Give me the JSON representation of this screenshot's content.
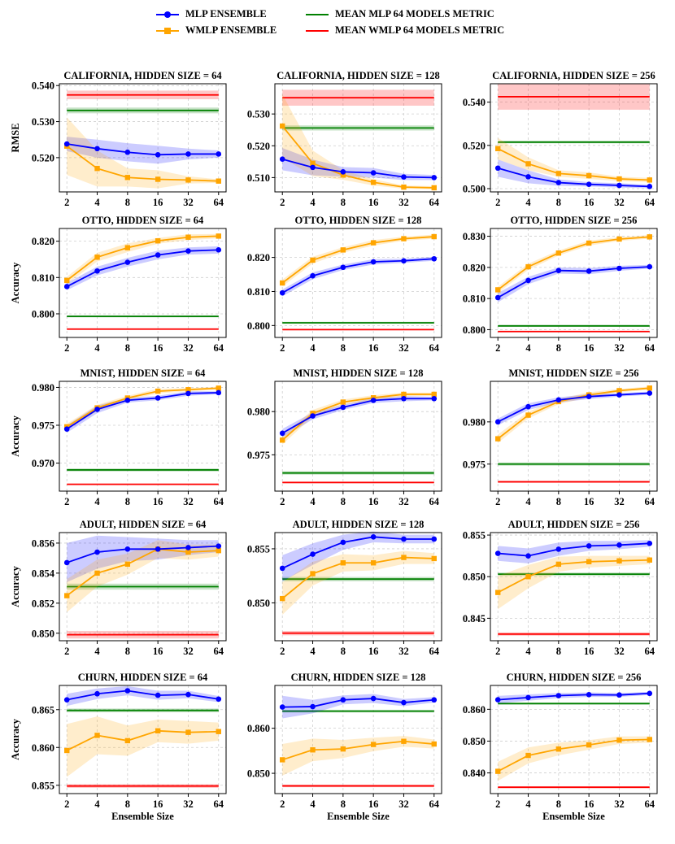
{
  "legend": {
    "items": [
      {
        "label": "MLP ENSEMBLE",
        "color": "#0000ff",
        "marker": "circle"
      },
      {
        "label": "WMLP ENSEMBLE",
        "color": "#ffa500",
        "marker": "square"
      },
      {
        "label": "MEAN MLP 64 MODELS METRIC",
        "color": "#008000",
        "marker": "none"
      },
      {
        "label": "MEAN WMLP 64 MODELS METRIC",
        "color": "#ff0000",
        "marker": "none"
      }
    ]
  },
  "chart_data": [
    {
      "type": "line",
      "title": "CALIFORNIA, HIDDEN SIZE = 64",
      "ylabel": "RMSE",
      "xlabel": "",
      "categories": [
        "2",
        "4",
        "8",
        "16",
        "32",
        "64"
      ],
      "ylim": [
        0.5105,
        0.5405
      ],
      "yticks": [
        "0.520",
        "0.530",
        "0.540"
      ],
      "ytick_values": [
        0.52,
        0.53,
        0.54
      ],
      "series": [
        {
          "name": "MLP ENSEMBLE",
          "values": [
            0.5238,
            0.5225,
            0.5215,
            0.5208,
            0.521,
            0.521
          ],
          "band": [
            0.002,
            0.0025,
            0.0025,
            0.0025,
            0.0015,
            0.001
          ]
        },
        {
          "name": "WMLP ENSEMBLE",
          "values": [
            0.5232,
            0.517,
            0.5145,
            0.514,
            0.5138,
            0.5135
          ],
          "band": [
            0.008,
            0.005,
            0.0025,
            0.0025,
            0.001,
            0.0005
          ]
        }
      ],
      "mean_mlp": 0.5331,
      "mean_mlp_band": 0.0008,
      "mean_wmlp": 0.5374,
      "mean_wmlp_band": 0.0012
    },
    {
      "type": "line",
      "title": "CALIFORNIA, HIDDEN SIZE = 128",
      "ylabel": "",
      "xlabel": "",
      "categories": [
        "2",
        "4",
        "8",
        "16",
        "32",
        "64"
      ],
      "ylim": [
        0.5055,
        0.5395
      ],
      "yticks": [
        "0.510",
        "0.520",
        "0.530"
      ],
      "ytick_values": [
        0.51,
        0.52,
        0.53
      ],
      "series": [
        {
          "name": "MLP ENSEMBLE",
          "values": [
            0.5158,
            0.5132,
            0.5118,
            0.5115,
            0.5102,
            0.51
          ],
          "band": [
            0.0035,
            0.0025,
            0.0015,
            0.0015,
            0.001,
            0.0008
          ]
        },
        {
          "name": "WMLP ENSEMBLE",
          "values": [
            0.5262,
            0.5145,
            0.5108,
            0.5085,
            0.507,
            0.5068
          ],
          "band": [
            0.01,
            0.004,
            0.0015,
            0.001,
            0.0005,
            0.0005
          ]
        }
      ],
      "mean_mlp": 0.5256,
      "mean_mlp_band": 0.0008,
      "mean_wmlp": 0.5351,
      "mean_wmlp_band": 0.0025
    },
    {
      "type": "line",
      "title": "CALIFORNIA, HIDDEN SIZE = 256",
      "ylabel": "",
      "xlabel": "",
      "categories": [
        "2",
        "4",
        "8",
        "16",
        "32",
        "64"
      ],
      "ylim": [
        0.4985,
        0.5485
      ],
      "yticks": [
        "0.500",
        "0.520",
        "0.540"
      ],
      "ytick_values": [
        0.5,
        0.52,
        0.54
      ],
      "series": [
        {
          "name": "MLP ENSEMBLE",
          "values": [
            0.5095,
            0.5055,
            0.5028,
            0.502,
            0.5015,
            0.501
          ],
          "band": [
            0.004,
            0.003,
            0.0015,
            0.001,
            0.001,
            0.0008
          ]
        },
        {
          "name": "WMLP ENSEMBLE",
          "values": [
            0.5185,
            0.5115,
            0.507,
            0.506,
            0.5045,
            0.504
          ],
          "band": [
            0.005,
            0.003,
            0.0015,
            0.0015,
            0.001,
            0.001
          ]
        }
      ],
      "mean_mlp": 0.5215,
      "mean_mlp_band": 0.0006,
      "mean_wmlp": 0.5425,
      "mean_wmlp_band": 0.006
    },
    {
      "type": "line",
      "title": "OTTO, HIDDEN SIZE = 64",
      "ylabel": "Accuracy",
      "xlabel": "",
      "categories": [
        "2",
        "4",
        "8",
        "16",
        "32",
        "64"
      ],
      "ylim": [
        0.7935,
        0.8235
      ],
      "yticks": [
        "0.800",
        "0.810",
        "0.820"
      ],
      "ytick_values": [
        0.8,
        0.81,
        0.82
      ],
      "series": [
        {
          "name": "MLP ENSEMBLE",
          "values": [
            0.8075,
            0.8118,
            0.8142,
            0.8162,
            0.8173,
            0.8176
          ],
          "band": [
            0.001,
            0.0012,
            0.0012,
            0.0012,
            0.001,
            0.001
          ]
        },
        {
          "name": "WMLP ENSEMBLE",
          "values": [
            0.8092,
            0.8156,
            0.8182,
            0.8201,
            0.8211,
            0.8214
          ],
          "band": [
            0.001,
            0.0012,
            0.0012,
            0.0008,
            0.0008,
            0.0006
          ]
        }
      ],
      "mean_mlp": 0.7993,
      "mean_mlp_band": 0.0003,
      "mean_wmlp": 0.7958,
      "mean_wmlp_band": 0.0002
    },
    {
      "type": "line",
      "title": "OTTO, HIDDEN SIZE = 128",
      "ylabel": "",
      "xlabel": "",
      "categories": [
        "2",
        "4",
        "8",
        "16",
        "32",
        "64"
      ],
      "ylim": [
        0.7965,
        0.8285
      ],
      "yticks": [
        "0.800",
        "0.810",
        "0.820"
      ],
      "ytick_values": [
        0.8,
        0.81,
        0.82
      ],
      "series": [
        {
          "name": "MLP ENSEMBLE",
          "values": [
            0.8096,
            0.8146,
            0.8171,
            0.8187,
            0.819,
            0.8196
          ],
          "band": [
            0.001,
            0.001,
            0.0008,
            0.0008,
            0.0006,
            0.0006
          ]
        },
        {
          "name": "WMLP ENSEMBLE",
          "values": [
            0.8125,
            0.8192,
            0.8222,
            0.8243,
            0.8255,
            0.8261
          ],
          "band": [
            0.001,
            0.001,
            0.0008,
            0.0008,
            0.0006,
            0.0006
          ]
        }
      ],
      "mean_mlp": 0.8008,
      "mean_mlp_band": 0.0003,
      "mean_wmlp": 0.7988,
      "mean_wmlp_band": 0.0002
    },
    {
      "type": "line",
      "title": "OTTO, HIDDEN SIZE = 256",
      "ylabel": "",
      "xlabel": "",
      "categories": [
        "2",
        "4",
        "8",
        "16",
        "32",
        "64"
      ],
      "ylim": [
        0.7975,
        0.8325
      ],
      "yticks": [
        "0.800",
        "0.810",
        "0.820",
        "0.830"
      ],
      "ytick_values": [
        0.8,
        0.81,
        0.82,
        0.83
      ],
      "series": [
        {
          "name": "MLP ENSEMBLE",
          "values": [
            0.8103,
            0.8158,
            0.819,
            0.8188,
            0.8197,
            0.8202
          ],
          "band": [
            0.0015,
            0.0012,
            0.001,
            0.001,
            0.0008,
            0.0006
          ]
        },
        {
          "name": "WMLP ENSEMBLE",
          "values": [
            0.8128,
            0.8202,
            0.8246,
            0.8278,
            0.8291,
            0.8298
          ],
          "band": [
            0.001,
            0.001,
            0.0008,
            0.0008,
            0.0006,
            0.0006
          ]
        }
      ],
      "mean_mlp": 0.8012,
      "mean_mlp_band": 0.0003,
      "mean_wmlp": 0.7994,
      "mean_wmlp_band": 0.0002
    },
    {
      "type": "line",
      "title": "MNIST, HIDDEN SIZE = 64",
      "ylabel": "Accuracy",
      "xlabel": "",
      "categories": [
        "2",
        "4",
        "8",
        "16",
        "32",
        "64"
      ],
      "ylim": [
        0.9663,
        0.9808
      ],
      "yticks": [
        "0.970",
        "0.975",
        "0.980"
      ],
      "ytick_values": [
        0.97,
        0.975,
        0.98
      ],
      "series": [
        {
          "name": "MLP ENSEMBLE",
          "values": [
            0.9745,
            0.9771,
            0.9783,
            0.9786,
            0.9792,
            0.9793
          ],
          "band": [
            0.0005,
            0.0005,
            0.0003,
            0.0003,
            0.0003,
            0.0002
          ]
        },
        {
          "name": "WMLP ENSEMBLE",
          "values": [
            0.9748,
            0.9773,
            0.9786,
            0.9795,
            0.9797,
            0.9799
          ],
          "band": [
            0.0004,
            0.0004,
            0.0003,
            0.0003,
            0.0002,
            0.0002
          ]
        }
      ],
      "mean_mlp": 0.9691,
      "mean_mlp_band": 0.0002,
      "mean_wmlp": 0.9672,
      "mean_wmlp_band": 0.0001
    },
    {
      "type": "line",
      "title": "MNIST, HIDDEN SIZE = 128",
      "ylabel": "",
      "xlabel": "",
      "categories": [
        "2",
        "4",
        "8",
        "16",
        "32",
        "64"
      ],
      "ylim": [
        0.9708,
        0.9835
      ],
      "yticks": [
        "0.975",
        "0.980"
      ],
      "ytick_values": [
        0.975,
        0.98
      ],
      "series": [
        {
          "name": "MLP ENSEMBLE",
          "values": [
            0.9775,
            0.9795,
            0.9805,
            0.9813,
            0.9815,
            0.9815
          ],
          "band": [
            0.0005,
            0.0004,
            0.0003,
            0.0003,
            0.0003,
            0.0002
          ]
        },
        {
          "name": "WMLP ENSEMBLE",
          "values": [
            0.9767,
            0.9798,
            0.9811,
            0.9816,
            0.982,
            0.982
          ],
          "band": [
            0.0005,
            0.0004,
            0.0003,
            0.0003,
            0.0002,
            0.0002
          ]
        }
      ],
      "mean_mlp": 0.9729,
      "mean_mlp_band": 0.0002,
      "mean_wmlp": 0.9718,
      "mean_wmlp_band": 0.0001
    },
    {
      "type": "line",
      "title": "MNIST, HIDDEN SIZE = 256",
      "ylabel": "",
      "xlabel": "",
      "categories": [
        "2",
        "4",
        "8",
        "16",
        "32",
        "64"
      ],
      "ylim": [
        0.9718,
        0.9848
      ],
      "yticks": [
        "0.975",
        "0.980"
      ],
      "ytick_values": [
        0.975,
        0.98
      ],
      "series": [
        {
          "name": "MLP ENSEMBLE",
          "values": [
            0.98,
            0.9818,
            0.9826,
            0.983,
            0.9832,
            0.9834
          ],
          "band": [
            0.0004,
            0.0004,
            0.0003,
            0.0003,
            0.0002,
            0.0002
          ]
        },
        {
          "name": "WMLP ENSEMBLE",
          "values": [
            0.978,
            0.9808,
            0.9824,
            0.9832,
            0.9837,
            0.984
          ],
          "band": [
            0.0005,
            0.0004,
            0.0003,
            0.0003,
            0.0002,
            0.0002
          ]
        }
      ],
      "mean_mlp": 0.975,
      "mean_mlp_band": 0.0002,
      "mean_wmlp": 0.9729,
      "mean_wmlp_band": 0.0001
    },
    {
      "type": "line",
      "title": "ADULT, HIDDEN SIZE = 64",
      "ylabel": "Accuracy",
      "xlabel": "",
      "categories": [
        "2",
        "4",
        "8",
        "16",
        "32",
        "64"
      ],
      "ylim": [
        0.8495,
        0.8567
      ],
      "yticks": [
        "0.850",
        "0.852",
        "0.854",
        "0.856"
      ],
      "ytick_values": [
        0.85,
        0.852,
        0.854,
        0.856
      ],
      "series": [
        {
          "name": "MLP ENSEMBLE",
          "values": [
            0.8547,
            0.8554,
            0.8556,
            0.8556,
            0.8557,
            0.8558
          ],
          "band": [
            0.0013,
            0.0011,
            0.0008,
            0.0007,
            0.0005,
            0.0004
          ]
        },
        {
          "name": "WMLP ENSEMBLE",
          "values": [
            0.8525,
            0.854,
            0.8546,
            0.8556,
            0.8554,
            0.8555
          ],
          "band": [
            0.0011,
            0.0009,
            0.0007,
            0.0006,
            0.0005,
            0.0004
          ]
        }
      ],
      "mean_mlp": 0.8531,
      "mean_mlp_band": 0.0002,
      "mean_wmlp": 0.8499,
      "mean_wmlp_band": 0.00025
    },
    {
      "type": "line",
      "title": "ADULT, HIDDEN SIZE = 128",
      "ylabel": "",
      "xlabel": "",
      "categories": [
        "2",
        "4",
        "8",
        "16",
        "32",
        "64"
      ],
      "ylim": [
        0.8465,
        0.8565
      ],
      "yticks": [
        "0.850",
        "0.855"
      ],
      "ytick_values": [
        0.85,
        0.855
      ],
      "series": [
        {
          "name": "MLP ENSEMBLE",
          "values": [
            0.8532,
            0.8545,
            0.8556,
            0.8561,
            0.8559,
            0.8559
          ],
          "band": [
            0.0012,
            0.001,
            0.0007,
            0.0005,
            0.0004,
            0.0004
          ]
        },
        {
          "name": "WMLP ENSEMBLE",
          "values": [
            0.8504,
            0.8527,
            0.8537,
            0.8537,
            0.8542,
            0.8541
          ],
          "band": [
            0.0015,
            0.0011,
            0.0008,
            0.0007,
            0.0006,
            0.0005
          ]
        }
      ],
      "mean_mlp": 0.8522,
      "mean_mlp_band": 0.0002,
      "mean_wmlp": 0.8472,
      "mean_wmlp_band": 0.0002
    },
    {
      "type": "line",
      "title": "ADULT, HIDDEN SIZE = 256",
      "ylabel": "",
      "xlabel": "",
      "categories": [
        "2",
        "4",
        "8",
        "16",
        "32",
        "64"
      ],
      "ylim": [
        0.8423,
        0.8553
      ],
      "yticks": [
        "0.845",
        "0.850",
        "0.855"
      ],
      "ytick_values": [
        0.845,
        0.85,
        0.855
      ],
      "series": [
        {
          "name": "MLP ENSEMBLE",
          "values": [
            0.8528,
            0.8525,
            0.8533,
            0.8537,
            0.8538,
            0.854
          ],
          "band": [
            0.0009,
            0.0009,
            0.0008,
            0.0006,
            0.0005,
            0.0004
          ]
        },
        {
          "name": "WMLP ENSEMBLE",
          "values": [
            0.8481,
            0.85,
            0.8515,
            0.8518,
            0.8519,
            0.852
          ],
          "band": [
            0.002,
            0.0014,
            0.0009,
            0.0007,
            0.0006,
            0.0005
          ]
        }
      ],
      "mean_mlp": 0.8503,
      "mean_mlp_band": 0.0002,
      "mean_wmlp": 0.8431,
      "mean_wmlp_band": 0.0002
    },
    {
      "type": "line",
      "title": "CHURN, HIDDEN SIZE = 64",
      "ylabel": "Accuracy",
      "xlabel": "Ensemble Size",
      "categories": [
        "2",
        "4",
        "8",
        "16",
        "32",
        "64"
      ],
      "ylim": [
        0.8539,
        0.8682
      ],
      "yticks": [
        "0.855",
        "0.860",
        "0.865"
      ],
      "ytick_values": [
        0.855,
        0.86,
        0.865
      ],
      "series": [
        {
          "name": "MLP ENSEMBLE",
          "values": [
            0.8663,
            0.8671,
            0.8675,
            0.8669,
            0.867,
            0.8664
          ],
          "band": [
            0.0008,
            0.0007,
            0.0006,
            0.0006,
            0.0005,
            0.0004
          ]
        },
        {
          "name": "WMLP ENSEMBLE",
          "values": [
            0.8596,
            0.8616,
            0.8609,
            0.8622,
            0.862,
            0.8621
          ],
          "band": [
            0.0035,
            0.0025,
            0.002,
            0.0015,
            0.0015,
            0.0012
          ]
        }
      ],
      "mean_mlp": 0.8649,
      "mean_mlp_band": 0.00025,
      "mean_wmlp": 0.8549,
      "mean_wmlp_band": 0.00025
    },
    {
      "type": "line",
      "title": "CHURN, HIDDEN SIZE = 128",
      "ylabel": "",
      "xlabel": "Ensemble Size",
      "categories": [
        "2",
        "4",
        "8",
        "16",
        "32",
        "64"
      ],
      "ylim": [
        0.8455,
        0.8695
      ],
      "yticks": [
        "0.850",
        "0.860"
      ],
      "ytick_values": [
        0.85,
        0.86
      ],
      "series": [
        {
          "name": "MLP ENSEMBLE",
          "values": [
            0.8647,
            0.8648,
            0.8663,
            0.8666,
            0.8657,
            0.8663
          ],
          "band": [
            0.0025,
            0.0015,
            0.001,
            0.001,
            0.0008,
            0.0006
          ]
        },
        {
          "name": "WMLP ENSEMBLE",
          "values": [
            0.853,
            0.8552,
            0.8554,
            0.8564,
            0.8571,
            0.8565
          ],
          "band": [
            0.0035,
            0.0025,
            0.002,
            0.0015,
            0.0012,
            0.001
          ]
        }
      ],
      "mean_mlp": 0.8638,
      "mean_mlp_band": 0.0003,
      "mean_wmlp": 0.8472,
      "mean_wmlp_band": 0.0003
    },
    {
      "type": "line",
      "title": "CHURN, HIDDEN SIZE = 256",
      "ylabel": "",
      "xlabel": "Ensemble Size",
      "categories": [
        "2",
        "4",
        "8",
        "16",
        "32",
        "64"
      ],
      "ylim": [
        0.8335,
        0.8675
      ],
      "yticks": [
        "0.840",
        "0.850",
        "0.860"
      ],
      "ytick_values": [
        0.84,
        0.85,
        0.86
      ],
      "series": [
        {
          "name": "MLP ENSEMBLE",
          "values": [
            0.863,
            0.8637,
            0.8643,
            0.8646,
            0.8645,
            0.865
          ],
          "band": [
            0.0012,
            0.001,
            0.0008,
            0.0007,
            0.0006,
            0.0005
          ]
        },
        {
          "name": "WMLP ENSEMBLE",
          "values": [
            0.8405,
            0.8455,
            0.8475,
            0.8488,
            0.8503,
            0.8505
          ],
          "band": [
            0.003,
            0.0025,
            0.002,
            0.0015,
            0.0012,
            0.001
          ]
        }
      ],
      "mean_mlp": 0.8618,
      "mean_mlp_band": 0.0003,
      "mean_wmlp": 0.8355,
      "mean_wmlp_band": 0.0003
    }
  ]
}
